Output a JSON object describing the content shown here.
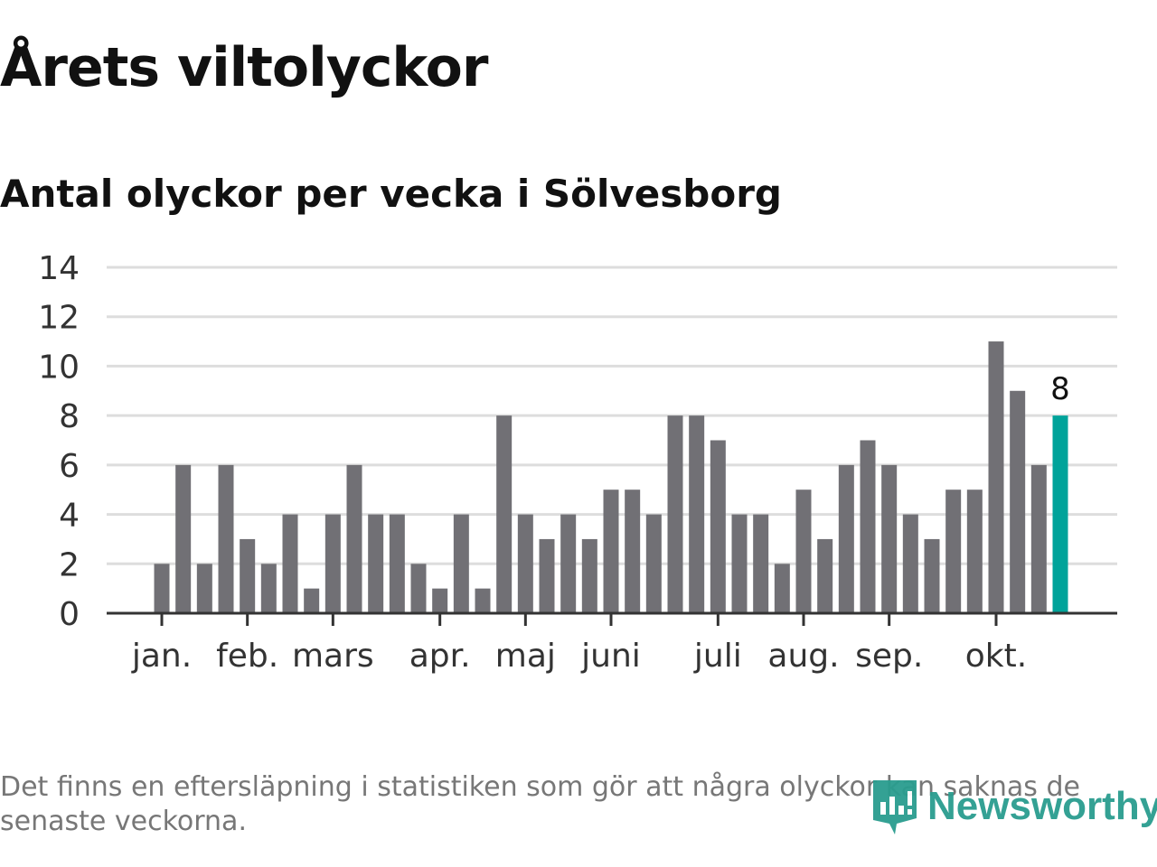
{
  "title": "Årets viltolyckor",
  "subtitle": "Antal olyckor per vecka i Sölvesborg",
  "note": "Det finns en eftersläpning i statistiken som gör att några olyckor kan saknas de senaste veckorna.",
  "logo_text": "Newsworthy",
  "colors": {
    "bar": "#717075",
    "highlight": "#00a39a",
    "grid": "#dddddd"
  },
  "chart_data": {
    "type": "bar",
    "title": "Antal olyckor per vecka i Sölvesborg",
    "xlabel": "",
    "ylabel": "",
    "ylim": [
      0,
      14
    ],
    "yticks": [
      0,
      2,
      4,
      6,
      8,
      10,
      12,
      14
    ],
    "grid": true,
    "values": [
      2,
      6,
      2,
      6,
      3,
      2,
      4,
      1,
      4,
      6,
      4,
      4,
      2,
      1,
      4,
      1,
      8,
      4,
      3,
      4,
      3,
      5,
      5,
      4,
      8,
      8,
      7,
      4,
      4,
      2,
      5,
      3,
      6,
      7,
      6,
      4,
      3,
      5,
      5,
      11,
      9,
      6,
      8
    ],
    "month_labels": [
      {
        "label": "jan.",
        "week_index": 0
      },
      {
        "label": "feb.",
        "week_index": 4
      },
      {
        "label": "mars",
        "week_index": 8
      },
      {
        "label": "apr.",
        "week_index": 13
      },
      {
        "label": "maj",
        "week_index": 17
      },
      {
        "label": "juni",
        "week_index": 21
      },
      {
        "label": "juli",
        "week_index": 26
      },
      {
        "label": "aug.",
        "week_index": 30
      },
      {
        "label": "sep.",
        "week_index": 34
      },
      {
        "label": "okt.",
        "week_index": 39
      }
    ],
    "highlight_index": 42,
    "data_label": "8"
  }
}
